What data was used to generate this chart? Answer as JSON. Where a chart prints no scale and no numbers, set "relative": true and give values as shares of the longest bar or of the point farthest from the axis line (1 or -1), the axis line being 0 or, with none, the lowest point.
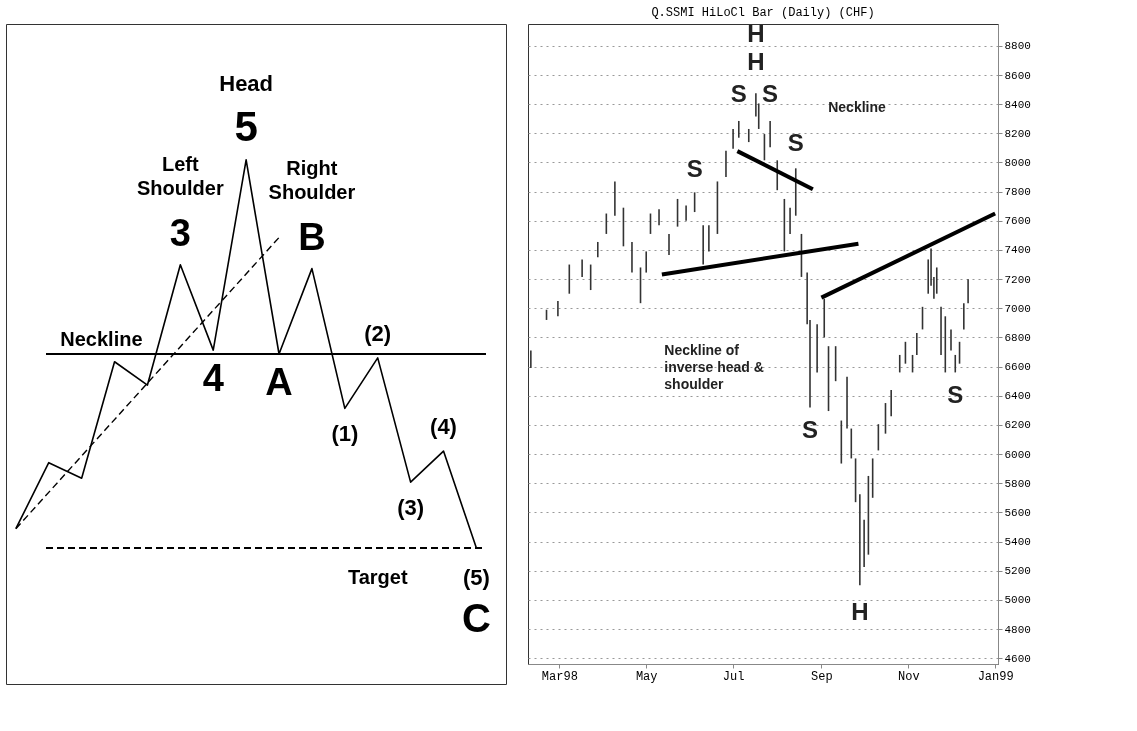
{
  "chart_data": [
    {
      "type": "line",
      "relative": true,
      "marker": "none",
      "categories": [
        null,
        null,
        null,
        null,
        null,
        null,
        null,
        null,
        null,
        null,
        null,
        null,
        null,
        null,
        null
      ],
      "series": [
        {
          "color": "#000000",
          "line_style": "solid",
          "values": [
            0.05,
            0.22,
            0.18,
            0.48,
            0.42,
            0.73,
            0.51,
            1.0,
            0.5,
            0.72,
            0.36,
            0.49,
            0.17,
            0.25,
            0.0
          ]
        },
        {
          "color": "#000000",
          "line_style": "dashed",
          "values": [
            0.05,
            null,
            null,
            null,
            null,
            null,
            null,
            null,
            0.8,
            null,
            null,
            null,
            null,
            null,
            null
          ]
        }
      ],
      "ref_lines": [
        {
          "axis": "y",
          "value": 0.5,
          "label": "Neckline",
          "line_style": "solid"
        },
        {
          "axis": "y",
          "value": 0.0,
          "label": "Target",
          "line_style": "dashed"
        }
      ],
      "annotations": [
        "Head",
        "Left Shoulder",
        "Right Shoulder",
        "3",
        "4",
        "5",
        "A",
        "B",
        "(1)",
        "(2)",
        "(3)",
        "(4)",
        "(5)",
        "C"
      ]
    },
    {
      "type": "bar",
      "title": "Q.SSMI HiLoCl Bar (Daily) (CHF)",
      "grid": "y",
      "xlim": [
        "1998-02-07",
        "1999-01-03"
      ],
      "xticks": [
        {
          "value": "1998-03-01",
          "label": "Mar98"
        },
        {
          "value": "1998-05-01",
          "label": "May"
        },
        {
          "value": "1998-07-01",
          "label": "Jul"
        },
        {
          "value": "1998-09-01",
          "label": "Sep"
        },
        {
          "value": "1998-11-01",
          "label": "Nov"
        },
        {
          "value": "1999-01-01",
          "label": "Jan99"
        }
      ],
      "ylim": [
        4560,
        8950
      ],
      "yticks": [
        4600,
        4800,
        5000,
        5200,
        5400,
        5600,
        5800,
        6000,
        6200,
        6400,
        6600,
        6800,
        7000,
        7200,
        7400,
        7600,
        7800,
        8000,
        8200,
        8400,
        8600,
        8800
      ],
      "color": "#333333",
      "x": [
        "1998-02-09",
        "1998-02-20",
        "1998-02-28",
        "1998-03-08",
        "1998-03-17",
        "1998-03-23",
        "1998-03-28",
        "1998-04-03",
        "1998-04-09",
        "1998-04-15",
        "1998-04-21",
        "1998-04-27",
        "1998-05-01",
        "1998-05-04",
        "1998-05-10",
        "1998-05-17",
        "1998-05-23",
        "1998-05-29",
        "1998-06-04",
        "1998-06-10",
        "1998-06-14",
        "1998-06-20",
        "1998-06-26",
        "1998-07-01",
        "1998-07-05",
        "1998-07-12",
        "1998-07-17",
        "1998-07-19",
        "1998-07-23",
        "1998-07-27",
        "1998-08-01",
        "1998-08-06",
        "1998-08-10",
        "1998-08-14",
        "1998-08-18",
        "1998-08-22",
        "1998-08-24",
        "1998-08-29",
        "1998-09-03",
        "1998-09-06",
        "1998-09-11",
        "1998-09-15",
        "1998-09-19",
        "1998-09-22",
        "1998-09-25",
        "1998-09-28",
        "1998-10-01",
        "1998-10-04",
        "1998-10-07",
        "1998-10-11",
        "1998-10-16",
        "1998-10-20",
        "1998-10-26",
        "1998-10-30",
        "1998-11-04",
        "1998-11-07",
        "1998-11-11",
        "1998-11-15",
        "1998-11-17",
        "1998-11-19",
        "1998-11-21",
        "1998-11-24",
        "1998-11-27",
        "1998-12-01",
        "1998-12-04",
        "1998-12-07",
        "1998-12-10",
        "1998-12-13"
      ],
      "base": [
        6590,
        6920,
        6945,
        7100,
        7215,
        7125,
        7350,
        7510,
        7635,
        7425,
        7245,
        7035,
        7245,
        7510,
        7570,
        7365,
        7560,
        7600,
        7660,
        7300,
        7390,
        7510,
        7900,
        8095,
        8170,
        8140,
        8315,
        8230,
        8015,
        8105,
        7810,
        7390,
        7510,
        7635,
        7215,
        6890,
        6320,
        6560,
        6800,
        6295,
        6500,
        5935,
        6175,
        5970,
        5670,
        5100,
        5225,
        5310,
        5700,
        6025,
        6140,
        6260,
        6560,
        6620,
        6560,
        6680,
        6855,
        7100,
        7155,
        7065,
        7100,
        6680,
        6560,
        6710,
        6560,
        6620,
        6855,
        7035
      ],
      "values": [
        120,
        70,
        105,
        200,
        120,
        175,
        105,
        140,
        235,
        265,
        210,
        245,
        145,
        140,
        110,
        145,
        190,
        105,
        135,
        270,
        180,
        360,
        180,
        135,
        115,
        90,
        160,
        175,
        180,
        180,
        205,
        360,
        180,
        325,
        295,
        355,
        600,
        330,
        265,
        445,
        240,
        295,
        355,
        205,
        300,
        625,
        325,
        540,
        270,
        180,
        210,
        180,
        120,
        150,
        120,
        150,
        155,
        235,
        255,
        150,
        180,
        330,
        385,
        145,
        120,
        150,
        180,
        165
      ],
      "series": [
        {
          "type": "line",
          "color": "#000000",
          "x": [
            "1998-05-12",
            "1998-09-27"
          ],
          "values": [
            7232,
            7443
          ]
        },
        {
          "type": "line",
          "color": "#000000",
          "x": [
            "1998-07-04",
            "1998-08-26"
          ],
          "values": [
            8078,
            7816
          ]
        },
        {
          "type": "line",
          "color": "#000000",
          "x": [
            "1998-09-01",
            "1999-01-01"
          ],
          "values": [
            7073,
            7650
          ]
        }
      ],
      "annotations": [
        "S",
        "S",
        "H",
        "H",
        "S",
        "S",
        "S",
        "H",
        "S",
        "Neckline",
        "Neckline of inverse head & shoulder"
      ]
    }
  ]
}
